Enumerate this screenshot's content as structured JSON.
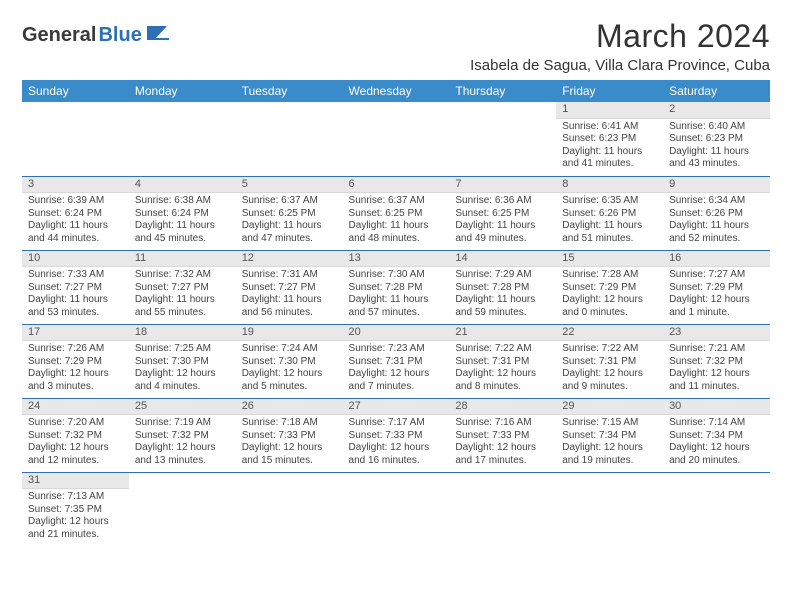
{
  "logo": {
    "text1": "General",
    "text2": "Blue"
  },
  "title": "March 2024",
  "location": "Isabela de Sagua, Villa Clara Province, Cuba",
  "dayHeaders": [
    "Sunday",
    "Monday",
    "Tuesday",
    "Wednesday",
    "Thursday",
    "Friday",
    "Saturday"
  ],
  "colors": {
    "headerBg": "#3a8bc9",
    "accent": "#2f6fb3",
    "dayStripe": "#e8e8e8"
  },
  "weeks": [
    [
      {
        "n": "",
        "sr": "",
        "ss": "",
        "dl": ""
      },
      {
        "n": "",
        "sr": "",
        "ss": "",
        "dl": ""
      },
      {
        "n": "",
        "sr": "",
        "ss": "",
        "dl": ""
      },
      {
        "n": "",
        "sr": "",
        "ss": "",
        "dl": ""
      },
      {
        "n": "",
        "sr": "",
        "ss": "",
        "dl": ""
      },
      {
        "n": "1",
        "sr": "Sunrise: 6:41 AM",
        "ss": "Sunset: 6:23 PM",
        "dl": "Daylight: 11 hours and 41 minutes."
      },
      {
        "n": "2",
        "sr": "Sunrise: 6:40 AM",
        "ss": "Sunset: 6:23 PM",
        "dl": "Daylight: 11 hours and 43 minutes."
      }
    ],
    [
      {
        "n": "3",
        "sr": "Sunrise: 6:39 AM",
        "ss": "Sunset: 6:24 PM",
        "dl": "Daylight: 11 hours and 44 minutes."
      },
      {
        "n": "4",
        "sr": "Sunrise: 6:38 AM",
        "ss": "Sunset: 6:24 PM",
        "dl": "Daylight: 11 hours and 45 minutes."
      },
      {
        "n": "5",
        "sr": "Sunrise: 6:37 AM",
        "ss": "Sunset: 6:25 PM",
        "dl": "Daylight: 11 hours and 47 minutes."
      },
      {
        "n": "6",
        "sr": "Sunrise: 6:37 AM",
        "ss": "Sunset: 6:25 PM",
        "dl": "Daylight: 11 hours and 48 minutes."
      },
      {
        "n": "7",
        "sr": "Sunrise: 6:36 AM",
        "ss": "Sunset: 6:25 PM",
        "dl": "Daylight: 11 hours and 49 minutes."
      },
      {
        "n": "8",
        "sr": "Sunrise: 6:35 AM",
        "ss": "Sunset: 6:26 PM",
        "dl": "Daylight: 11 hours and 51 minutes."
      },
      {
        "n": "9",
        "sr": "Sunrise: 6:34 AM",
        "ss": "Sunset: 6:26 PM",
        "dl": "Daylight: 11 hours and 52 minutes."
      }
    ],
    [
      {
        "n": "10",
        "sr": "Sunrise: 7:33 AM",
        "ss": "Sunset: 7:27 PM",
        "dl": "Daylight: 11 hours and 53 minutes."
      },
      {
        "n": "11",
        "sr": "Sunrise: 7:32 AM",
        "ss": "Sunset: 7:27 PM",
        "dl": "Daylight: 11 hours and 55 minutes."
      },
      {
        "n": "12",
        "sr": "Sunrise: 7:31 AM",
        "ss": "Sunset: 7:27 PM",
        "dl": "Daylight: 11 hours and 56 minutes."
      },
      {
        "n": "13",
        "sr": "Sunrise: 7:30 AM",
        "ss": "Sunset: 7:28 PM",
        "dl": "Daylight: 11 hours and 57 minutes."
      },
      {
        "n": "14",
        "sr": "Sunrise: 7:29 AM",
        "ss": "Sunset: 7:28 PM",
        "dl": "Daylight: 11 hours and 59 minutes."
      },
      {
        "n": "15",
        "sr": "Sunrise: 7:28 AM",
        "ss": "Sunset: 7:29 PM",
        "dl": "Daylight: 12 hours and 0 minutes."
      },
      {
        "n": "16",
        "sr": "Sunrise: 7:27 AM",
        "ss": "Sunset: 7:29 PM",
        "dl": "Daylight: 12 hours and 1 minute."
      }
    ],
    [
      {
        "n": "17",
        "sr": "Sunrise: 7:26 AM",
        "ss": "Sunset: 7:29 PM",
        "dl": "Daylight: 12 hours and 3 minutes."
      },
      {
        "n": "18",
        "sr": "Sunrise: 7:25 AM",
        "ss": "Sunset: 7:30 PM",
        "dl": "Daylight: 12 hours and 4 minutes."
      },
      {
        "n": "19",
        "sr": "Sunrise: 7:24 AM",
        "ss": "Sunset: 7:30 PM",
        "dl": "Daylight: 12 hours and 5 minutes."
      },
      {
        "n": "20",
        "sr": "Sunrise: 7:23 AM",
        "ss": "Sunset: 7:31 PM",
        "dl": "Daylight: 12 hours and 7 minutes."
      },
      {
        "n": "21",
        "sr": "Sunrise: 7:22 AM",
        "ss": "Sunset: 7:31 PM",
        "dl": "Daylight: 12 hours and 8 minutes."
      },
      {
        "n": "22",
        "sr": "Sunrise: 7:22 AM",
        "ss": "Sunset: 7:31 PM",
        "dl": "Daylight: 12 hours and 9 minutes."
      },
      {
        "n": "23",
        "sr": "Sunrise: 7:21 AM",
        "ss": "Sunset: 7:32 PM",
        "dl": "Daylight: 12 hours and 11 minutes."
      }
    ],
    [
      {
        "n": "24",
        "sr": "Sunrise: 7:20 AM",
        "ss": "Sunset: 7:32 PM",
        "dl": "Daylight: 12 hours and 12 minutes."
      },
      {
        "n": "25",
        "sr": "Sunrise: 7:19 AM",
        "ss": "Sunset: 7:32 PM",
        "dl": "Daylight: 12 hours and 13 minutes."
      },
      {
        "n": "26",
        "sr": "Sunrise: 7:18 AM",
        "ss": "Sunset: 7:33 PM",
        "dl": "Daylight: 12 hours and 15 minutes."
      },
      {
        "n": "27",
        "sr": "Sunrise: 7:17 AM",
        "ss": "Sunset: 7:33 PM",
        "dl": "Daylight: 12 hours and 16 minutes."
      },
      {
        "n": "28",
        "sr": "Sunrise: 7:16 AM",
        "ss": "Sunset: 7:33 PM",
        "dl": "Daylight: 12 hours and 17 minutes."
      },
      {
        "n": "29",
        "sr": "Sunrise: 7:15 AM",
        "ss": "Sunset: 7:34 PM",
        "dl": "Daylight: 12 hours and 19 minutes."
      },
      {
        "n": "30",
        "sr": "Sunrise: 7:14 AM",
        "ss": "Sunset: 7:34 PM",
        "dl": "Daylight: 12 hours and 20 minutes."
      }
    ],
    [
      {
        "n": "31",
        "sr": "Sunrise: 7:13 AM",
        "ss": "Sunset: 7:35 PM",
        "dl": "Daylight: 12 hours and 21 minutes."
      },
      {
        "n": "",
        "sr": "",
        "ss": "",
        "dl": ""
      },
      {
        "n": "",
        "sr": "",
        "ss": "",
        "dl": ""
      },
      {
        "n": "",
        "sr": "",
        "ss": "",
        "dl": ""
      },
      {
        "n": "",
        "sr": "",
        "ss": "",
        "dl": ""
      },
      {
        "n": "",
        "sr": "",
        "ss": "",
        "dl": ""
      },
      {
        "n": "",
        "sr": "",
        "ss": "",
        "dl": ""
      }
    ]
  ]
}
